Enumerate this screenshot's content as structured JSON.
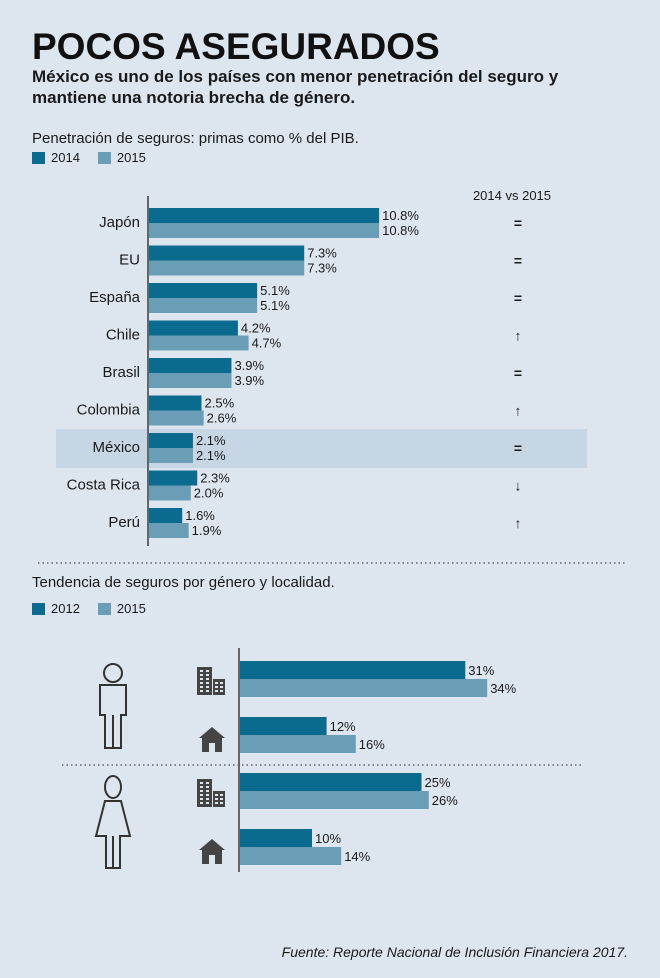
{
  "title": "POCOS ASEGURADOS",
  "subtitle": "México es uno de los países con menor penetración del seguro y mantiene una notoria brecha de género.",
  "colors": {
    "dark": "#0a6b8f",
    "light": "#6a9db6",
    "highlight": "#c6d6e4",
    "text": "#1a1a1a"
  },
  "source": "Fuente: Reporte Nacional de Inclusión Financiera 2017.",
  "chart_data": [
    {
      "type": "bar",
      "orientation": "horizontal",
      "title": "Penetración de seguros: primas como % del PIB.",
      "change_header": "2014 vs 2015",
      "categories": [
        "Japón",
        "EU",
        "España",
        "Chile",
        "Brasil",
        "Colombia",
        "México",
        "Costa Rica",
        "Perú"
      ],
      "series": [
        {
          "name": "2014",
          "values": [
            10.8,
            7.3,
            5.1,
            4.2,
            3.9,
            2.5,
            2.1,
            2.3,
            1.6
          ],
          "labels": [
            "10.8%",
            "7.3%",
            "5.1%",
            "4.2%",
            "3.9%",
            "2.5%",
            "2.1%",
            "2.3%",
            "1.6%"
          ]
        },
        {
          "name": "2015",
          "values": [
            10.8,
            7.3,
            5.1,
            4.7,
            3.9,
            2.6,
            2.1,
            2.0,
            1.9
          ],
          "labels": [
            "10.8%",
            "7.3%",
            "5.1%",
            "4.7%",
            "3.9%",
            "2.6%",
            "2.1%",
            "2.0%",
            "1.9%"
          ]
        }
      ],
      "change": [
        "=",
        "=",
        "=",
        "↑",
        "=",
        "↑",
        "=",
        "↓",
        "↑"
      ],
      "highlight_category": "México"
    },
    {
      "type": "bar",
      "orientation": "horizontal",
      "title": "Tendencia de seguros por género y localidad.",
      "groups": [
        {
          "gender_icon": "man-icon",
          "rows": [
            {
              "locality_icon": "building-icon",
              "values": [
                31,
                34
              ],
              "labels": [
                "31%",
                "34%"
              ]
            },
            {
              "locality_icon": "house-icon",
              "values": [
                12,
                16
              ],
              "labels": [
                "12%",
                "16%"
              ]
            }
          ]
        },
        {
          "gender_icon": "woman-icon",
          "rows": [
            {
              "locality_icon": "building-icon",
              "values": [
                25,
                26
              ],
              "labels": [
                "25%",
                "26%"
              ]
            },
            {
              "locality_icon": "house-icon",
              "values": [
                10,
                14
              ],
              "labels": [
                "10%",
                "14%"
              ]
            }
          ]
        }
      ],
      "series_names": [
        "2012",
        "2015"
      ]
    }
  ]
}
